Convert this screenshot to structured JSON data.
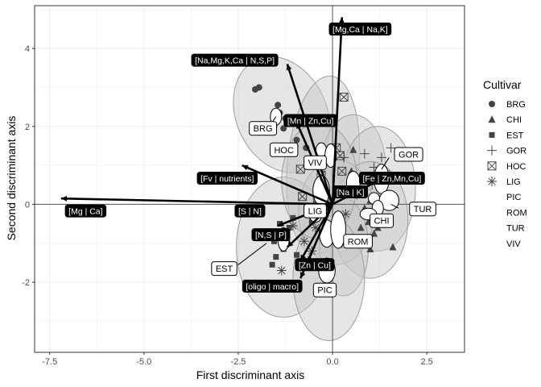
{
  "chart_data": {
    "type": "scatter",
    "xlabel": "First discriminant axis",
    "ylabel": "Second discriminant axis",
    "xlim": [
      -7.9,
      3.5
    ],
    "ylim": [
      -3.8,
      5.1
    ],
    "x_ticks": [
      {
        "v": -7.5,
        "label": "-7.5"
      },
      {
        "v": -5.0,
        "label": "-5.0"
      },
      {
        "v": -2.5,
        "label": "-2.5"
      },
      {
        "v": 0.0,
        "label": "0.0"
      },
      {
        "v": 2.5,
        "label": "2.5"
      }
    ],
    "y_ticks": [
      {
        "v": -2,
        "label": "-2"
      },
      {
        "v": 0,
        "label": "0"
      },
      {
        "v": 2,
        "label": "2"
      },
      {
        "v": 4,
        "label": "4"
      }
    ],
    "grid": true,
    "legend": {
      "title": "Cultivar",
      "position": "right",
      "entries": [
        {
          "label": "BRG",
          "shape": "circle"
        },
        {
          "label": "CHI",
          "shape": "triangle"
        },
        {
          "label": "EST",
          "shape": "square"
        },
        {
          "label": "GOR",
          "shape": "plus"
        },
        {
          "label": "HOC",
          "shape": "boxx"
        },
        {
          "label": "LIG",
          "shape": "star"
        },
        {
          "label": "PIC",
          "shape": "none"
        },
        {
          "label": "ROM",
          "shape": "none"
        },
        {
          "label": "TUR",
          "shape": "none"
        },
        {
          "label": "VIV",
          "shape": "none"
        }
      ]
    },
    "ellipses": [
      {
        "cx": -1.35,
        "cy": 2.3,
        "rx": 1.2,
        "ry": 1.55,
        "angle": 25
      },
      {
        "cx": -0.25,
        "cy": 1.0,
        "rx": 0.95,
        "ry": 2.3,
        "angle": -5
      },
      {
        "cx": 0.55,
        "cy": 1.0,
        "rx": 0.85,
        "ry": 1.3,
        "angle": 0
      },
      {
        "cx": 1.2,
        "cy": 0.4,
        "rx": 1.0,
        "ry": 1.6,
        "angle": 0
      },
      {
        "cx": -1.3,
        "cy": -1.1,
        "rx": 1.25,
        "ry": 1.8,
        "angle": 0
      },
      {
        "cx": 1.0,
        "cy": -0.4,
        "rx": 1.0,
        "ry": 1.5,
        "angle": 0
      },
      {
        "cx": 0.1,
        "cy": -0.2,
        "rx": 1.0,
        "ry": 1.35,
        "angle": 0
      },
      {
        "cx": 0.3,
        "cy": -1.1,
        "rx": 0.65,
        "ry": 1.25,
        "angle": 0
      },
      {
        "cx": -0.1,
        "cy": -1.9,
        "rx": 0.95,
        "ry": 1.6,
        "angle": 0
      },
      {
        "cx": -0.35,
        "cy": 0.6,
        "rx": 1.0,
        "ry": 1.5,
        "angle": 0
      }
    ],
    "centroid_ellipses": [
      {
        "cx": -1.5,
        "cy": 2.25,
        "rx": 0.15,
        "ry": 0.22
      },
      {
        "cx": -1.3,
        "cy": -0.9,
        "rx": 0.15,
        "ry": 0.3
      },
      {
        "cx": -0.3,
        "cy": 1.4,
        "rx": 0.14,
        "ry": 0.18
      },
      {
        "cx": -0.05,
        "cy": 1.25,
        "rx": 0.15,
        "ry": 0.3
      },
      {
        "cx": -0.3,
        "cy": 0.35,
        "rx": 0.22,
        "ry": 0.38
      },
      {
        "cx": -0.45,
        "cy": -0.3,
        "rx": 0.16,
        "ry": 0.16
      },
      {
        "cx": -0.15,
        "cy": -0.75,
        "rx": 0.2,
        "ry": 0.35
      },
      {
        "cx": 0.15,
        "cy": -0.65,
        "rx": 0.2,
        "ry": 0.48
      },
      {
        "cx": -0.15,
        "cy": -1.7,
        "rx": 0.22,
        "ry": 0.32
      },
      {
        "cx": 0.55,
        "cy": 0.55,
        "rx": 0.18,
        "ry": 0.3
      },
      {
        "cx": 1.3,
        "cy": 0.65,
        "rx": 0.2,
        "ry": 0.38
      },
      {
        "cx": 1.1,
        "cy": 0.15,
        "rx": 0.15,
        "ry": 0.15
      },
      {
        "cx": 1.5,
        "cy": 0.1,
        "rx": 0.26,
        "ry": 0.26
      },
      {
        "cx": 1.2,
        "cy": -0.1,
        "rx": 0.15,
        "ry": 0.2
      },
      {
        "cx": 0.95,
        "cy": -0.25,
        "rx": 0.22,
        "ry": 0.15
      }
    ],
    "points": [
      {
        "x": -2.05,
        "y": 2.95,
        "shape": "circle"
      },
      {
        "x": -1.95,
        "y": 3.0,
        "shape": "circle"
      },
      {
        "x": -1.45,
        "y": 2.55,
        "shape": "circle"
      },
      {
        "x": -1.4,
        "y": 2.35,
        "shape": "circle"
      },
      {
        "x": -1.25,
        "y": 2.2,
        "shape": "circle"
      },
      {
        "x": -1.3,
        "y": 1.95,
        "shape": "circle"
      },
      {
        "x": -1.55,
        "y": 2.0,
        "shape": "circle"
      },
      {
        "x": -1.45,
        "y": 1.35,
        "shape": "circle"
      },
      {
        "x": -0.95,
        "y": 1.65,
        "shape": "circle"
      },
      {
        "x": -0.7,
        "y": 1.45,
        "shape": "circle"
      },
      {
        "x": -0.5,
        "y": 1.05,
        "shape": "circle"
      },
      {
        "x": 0.55,
        "y": 1.4,
        "shape": "triangle"
      },
      {
        "x": 0.5,
        "y": 0.85,
        "shape": "triangle"
      },
      {
        "x": 0.8,
        "y": 0.35,
        "shape": "triangle"
      },
      {
        "x": 1.0,
        "y": 0.1,
        "shape": "triangle"
      },
      {
        "x": 0.85,
        "y": -0.1,
        "shape": "triangle"
      },
      {
        "x": 0.95,
        "y": -0.45,
        "shape": "triangle"
      },
      {
        "x": 0.75,
        "y": -0.6,
        "shape": "triangle"
      },
      {
        "x": 1.2,
        "y": -0.6,
        "shape": "triangle"
      },
      {
        "x": 0.45,
        "y": -0.95,
        "shape": "triangle"
      },
      {
        "x": 1.6,
        "y": -1.1,
        "shape": "triangle"
      },
      {
        "x": 1.1,
        "y": -0.75,
        "shape": "triangle"
      },
      {
        "x": 1.0,
        "y": -1.15,
        "shape": "triangle"
      },
      {
        "x": -1.05,
        "y": -0.35,
        "shape": "square"
      },
      {
        "x": -1.4,
        "y": -0.5,
        "shape": "square"
      },
      {
        "x": -1.15,
        "y": -0.6,
        "shape": "square"
      },
      {
        "x": -1.55,
        "y": -0.95,
        "shape": "square"
      },
      {
        "x": -1.2,
        "y": -0.95,
        "shape": "square"
      },
      {
        "x": -1.5,
        "y": -1.35,
        "shape": "square"
      },
      {
        "x": -1.3,
        "y": -1.15,
        "shape": "square"
      },
      {
        "x": -1.6,
        "y": -1.55,
        "shape": "square"
      },
      {
        "x": -0.95,
        "y": -1.3,
        "shape": "square"
      },
      {
        "x": -0.55,
        "y": -0.45,
        "shape": "square"
      },
      {
        "x": 0.3,
        "y": 1.2,
        "shape": "plus"
      },
      {
        "x": 0.85,
        "y": 1.3,
        "shape": "plus"
      },
      {
        "x": 1.55,
        "y": 1.45,
        "shape": "plus"
      },
      {
        "x": 1.3,
        "y": 1.2,
        "shape": "plus"
      },
      {
        "x": 1.1,
        "y": 0.95,
        "shape": "plus"
      },
      {
        "x": 1.5,
        "y": 0.75,
        "shape": "plus"
      },
      {
        "x": 1.05,
        "y": 0.5,
        "shape": "plus"
      },
      {
        "x": 1.35,
        "y": 0.35,
        "shape": "plus"
      },
      {
        "x": 0.65,
        "y": 0.25,
        "shape": "plus"
      },
      {
        "x": 0.3,
        "y": 2.75,
        "shape": "boxx"
      },
      {
        "x": 0.1,
        "y": 1.45,
        "shape": "boxx"
      },
      {
        "x": 0.2,
        "y": 1.25,
        "shape": "boxx"
      },
      {
        "x": -0.85,
        "y": 0.9,
        "shape": "boxx"
      },
      {
        "x": 0.25,
        "y": 0.85,
        "shape": "boxx"
      },
      {
        "x": -0.3,
        "y": 0.75,
        "shape": "boxx"
      },
      {
        "x": -0.8,
        "y": 0.2,
        "shape": "boxx"
      },
      {
        "x": -0.4,
        "y": 0.15,
        "shape": "boxx"
      },
      {
        "x": -0.15,
        "y": 0.05,
        "shape": "star"
      },
      {
        "x": 0.15,
        "y": -0.45,
        "shape": "star"
      },
      {
        "x": 0.35,
        "y": -0.25,
        "shape": "star"
      },
      {
        "x": -0.45,
        "y": -0.6,
        "shape": "star"
      },
      {
        "x": -1.05,
        "y": -0.55,
        "shape": "star"
      },
      {
        "x": -0.75,
        "y": -0.95,
        "shape": "star"
      },
      {
        "x": -0.55,
        "y": -1.2,
        "shape": "star"
      },
      {
        "x": -0.3,
        "y": -1.5,
        "shape": "star"
      },
      {
        "x": -0.1,
        "y": -1.75,
        "shape": "star"
      },
      {
        "x": -0.65,
        "y": -1.45,
        "shape": "star"
      },
      {
        "x": 0.25,
        "y": -1.0,
        "shape": "star"
      },
      {
        "x": -1.35,
        "y": -1.7,
        "shape": "star"
      }
    ],
    "arrows": [
      {
        "x2": -7.2,
        "y2": 0.15
      },
      {
        "x2": 0.25,
        "y2": 4.8
      },
      {
        "x2": -1.2,
        "y2": 3.6
      },
      {
        "x2": -0.95,
        "y2": 2.1
      },
      {
        "x2": -2.4,
        "y2": 1.0
      },
      {
        "x2": 1.3,
        "y2": 0.65
      },
      {
        "x2": 0.1,
        "y2": 0.35
      },
      {
        "x2": -1.45,
        "y2": -0.55
      },
      {
        "x2": -1.2,
        "y2": -1.1
      },
      {
        "x2": -0.85,
        "y2": -1.45
      },
      {
        "x2": -0.85,
        "y2": -1.9
      }
    ],
    "arrow_labels": [
      {
        "text": "[Mg | Ca]",
        "x": -7.0,
        "y": -0.17
      },
      {
        "text": "[Mg,Ca | Na,K]",
        "x": 0.0,
        "y": 4.5
      },
      {
        "text": "[Na,Mg,K,Ca | N,S,P]",
        "x": -3.65,
        "y": 3.7
      },
      {
        "text": "[Mn | Zn,Cu]",
        "x": -1.2,
        "y": 2.15
      },
      {
        "text": "[Fv | nutrients]",
        "x": -3.5,
        "y": 0.67
      },
      {
        "text": "[Fe | Zn,Mn,Cu]",
        "x": 0.8,
        "y": 0.67
      },
      {
        "text": "[Na | K]",
        "x": 0.1,
        "y": 0.32
      },
      {
        "text": "[S | N]",
        "x": -2.5,
        "y": -0.17
      },
      {
        "text": "[N,S | P]",
        "x": -2.05,
        "y": -0.78
      },
      {
        "text": "[Zn | Cu]",
        "x": -0.9,
        "y": -1.55
      },
      {
        "text": "[oligo | macro]",
        "x": -2.3,
        "y": -2.1
      }
    ],
    "cultivar_labels": [
      {
        "text": "BRG",
        "x": -2.1,
        "y": 1.95
      },
      {
        "text": "HOC",
        "x": -1.55,
        "y": 1.4
      },
      {
        "text": "VIV",
        "x": -0.65,
        "y": 1.07
      },
      {
        "text": "GOR",
        "x": 1.75,
        "y": 1.28
      },
      {
        "text": "LIG",
        "x": -0.65,
        "y": -0.17
      },
      {
        "text": "TUR",
        "x": 2.15,
        "y": -0.12
      },
      {
        "text": "CHI",
        "x": 1.1,
        "y": -0.42
      },
      {
        "text": "ROM",
        "x": 0.4,
        "y": -0.95
      },
      {
        "text": "EST",
        "x": -3.1,
        "y": -1.65
      },
      {
        "text": "PIC",
        "x": -0.4,
        "y": -2.2
      }
    ],
    "label_leaders": [
      {
        "x1": -1.7,
        "y1": 1.97,
        "x2": -1.5,
        "y2": 2.25
      },
      {
        "x1": -1.15,
        "y1": 1.42,
        "x2": -0.9,
        "y2": 1.5
      },
      {
        "x1": -2.5,
        "y1": -1.55,
        "x2": -1.75,
        "y2": -1.0
      },
      {
        "x1": -0.35,
        "y1": 0.75,
        "x2": -0.3,
        "y2": 0.6
      },
      {
        "x1": 1.5,
        "y1": 1.2,
        "x2": 1.3,
        "y2": 0.9
      },
      {
        "x1": 1.75,
        "y1": -0.1,
        "x2": 1.55,
        "y2": 0.0
      }
    ]
  }
}
